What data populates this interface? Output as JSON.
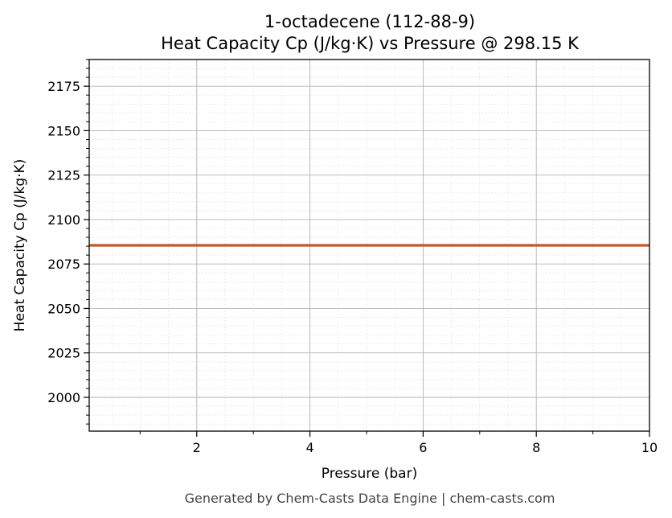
{
  "chart_data": {
    "type": "line",
    "title": "1-octadecene (112-88-9)",
    "subtitle": "Heat Capacity Cp (J/kg·K) vs Pressure @ 298.15 K",
    "xlabel": "Pressure (bar)",
    "ylabel": "Heat Capacity Cp (J/kg·K)",
    "xlim": [
      0.1,
      10
    ],
    "ylim": [
      1981,
      2190
    ],
    "x_ticks": [
      2,
      4,
      6,
      8,
      10
    ],
    "y_ticks": [
      2000,
      2025,
      2050,
      2075,
      2100,
      2125,
      2150,
      2175
    ],
    "grid": true,
    "series": [
      {
        "color": "#c4562a",
        "x": [
          0.1,
          1,
          2,
          3,
          4,
          5,
          6,
          7,
          8,
          9,
          10
        ],
        "y": [
          2085.5,
          2085.5,
          2085.5,
          2085.5,
          2085.5,
          2085.5,
          2085.5,
          2085.5,
          2085.5,
          2085.5,
          2085.5
        ]
      }
    ]
  },
  "footer": "Generated by Chem-Casts Data Engine | chem-casts.com"
}
